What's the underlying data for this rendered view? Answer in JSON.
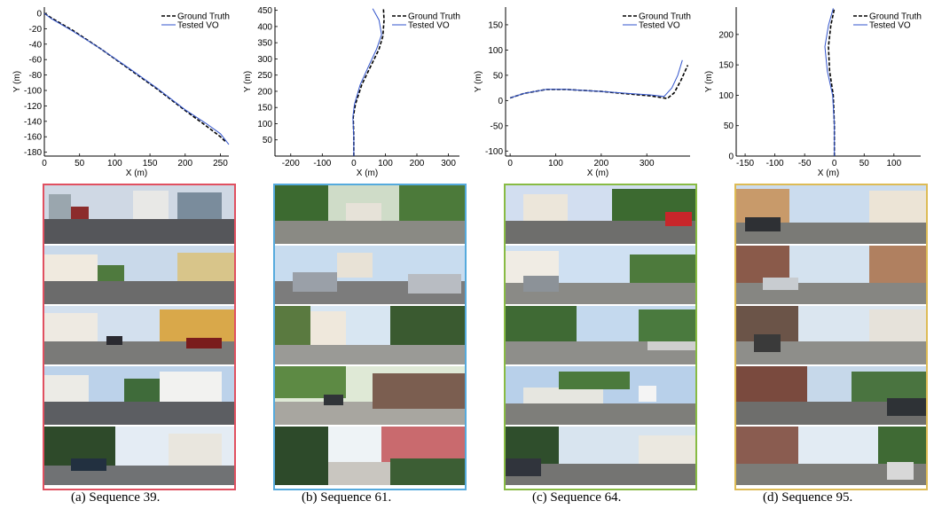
{
  "chart_data": [
    {
      "type": "line",
      "title": "",
      "xlabel": "X (m)",
      "ylabel": "Y (m)",
      "xlim": [
        0,
        262
      ],
      "ylim": [
        -185,
        8
      ],
      "xticks": [
        0,
        50,
        100,
        150,
        200,
        250
      ],
      "yticks": [
        0,
        -20,
        -40,
        -60,
        -80,
        -100,
        -120,
        -140,
        -160,
        -180
      ],
      "legend_position": "top-right",
      "series": [
        {
          "name": "Ground Truth",
          "style": "dashed",
          "color": "#000000",
          "x": [
            0,
            10,
            40,
            80,
            120,
            160,
            200,
            230,
            250,
            258
          ],
          "y": [
            0,
            -6,
            -22,
            -46,
            -72,
            -98,
            -126,
            -146,
            -160,
            -167
          ]
        },
        {
          "name": "Tested VO",
          "style": "solid",
          "color": "#3355cc",
          "x": [
            0,
            10,
            40,
            80,
            120,
            160,
            200,
            230,
            250,
            262
          ],
          "y": [
            0,
            -7,
            -23,
            -46,
            -71,
            -97,
            -125,
            -143,
            -156,
            -170
          ]
        }
      ],
      "border_color": "#e05060",
      "caption": "(a)  Sequence 39."
    },
    {
      "type": "line",
      "title": "",
      "xlabel": "X (m)",
      "ylabel": "Y (m)",
      "xlim": [
        -250,
        335
      ],
      "ylim": [
        0,
        460
      ],
      "xticks": [
        -200,
        -100,
        0,
        100,
        200,
        300
      ],
      "yticks": [
        50,
        100,
        150,
        200,
        250,
        300,
        350,
        400,
        450
      ],
      "legend_position": "top-right",
      "series": [
        {
          "name": "Ground Truth",
          "style": "dashed",
          "color": "#000000",
          "x": [
            0,
            0,
            -2,
            5,
            25,
            55,
            80,
            92,
            96,
            94
          ],
          "y": [
            0,
            60,
            120,
            160,
            220,
            280,
            330,
            370,
            420,
            455
          ]
        },
        {
          "name": "Tested VO",
          "style": "solid",
          "color": "#3355cc",
          "x": [
            0,
            0,
            -3,
            2,
            20,
            48,
            72,
            88,
            80,
            60
          ],
          "y": [
            0,
            60,
            120,
            160,
            220,
            280,
            330,
            375,
            420,
            455
          ]
        }
      ],
      "border_color": "#55aadd",
      "caption": "(b)  Sequence 61."
    },
    {
      "type": "line",
      "title": "",
      "xlabel": "X (m)",
      "ylabel": "Y (m)",
      "xlim": [
        -10,
        395
      ],
      "ylim": [
        -110,
        185
      ],
      "xticks": [
        0,
        100,
        200,
        300
      ],
      "yticks": [
        150,
        100,
        50,
        0,
        -50,
        -100
      ],
      "legend_position": "top-right",
      "series": [
        {
          "name": "Ground Truth",
          "style": "dashed",
          "color": "#000000",
          "x": [
            0,
            30,
            80,
            120,
            200,
            260,
            310,
            345,
            360,
            375,
            390
          ],
          "y": [
            5,
            14,
            22,
            22,
            18,
            13,
            9,
            4,
            15,
            40,
            70
          ]
        },
        {
          "name": "Tested VO",
          "style": "solid",
          "color": "#3355cc",
          "x": [
            0,
            30,
            80,
            120,
            200,
            260,
            310,
            338,
            355,
            368,
            378
          ],
          "y": [
            5,
            14,
            22,
            22,
            18,
            14,
            11,
            8,
            25,
            50,
            80
          ]
        }
      ],
      "border_color": "#88bb44",
      "caption": "(c)  Sequence 64."
    },
    {
      "type": "line",
      "title": "",
      "xlabel": "X (m)",
      "ylabel": "Y (m)",
      "xlim": [
        -165,
        145
      ],
      "ylim": [
        0,
        245
      ],
      "xticks": [
        -150,
        -100,
        -50,
        0,
        50,
        100
      ],
      "yticks": [
        0,
        50,
        100,
        150,
        200
      ],
      "legend_position": "top-right",
      "series": [
        {
          "name": "Ground Truth",
          "style": "dashed",
          "color": "#000000",
          "x": [
            0,
            0,
            -2,
            -8,
            -10,
            -6,
            0
          ],
          "y": [
            0,
            50,
            100,
            140,
            180,
            215,
            243
          ]
        },
        {
          "name": "Tested VO",
          "style": "solid",
          "color": "#3355cc",
          "x": [
            0,
            0,
            -3,
            -12,
            -16,
            -10,
            -2
          ],
          "y": [
            0,
            50,
            100,
            140,
            180,
            215,
            243
          ]
        }
      ],
      "border_color": "#ddbb55",
      "caption": "(d)  Sequence 95."
    }
  ]
}
